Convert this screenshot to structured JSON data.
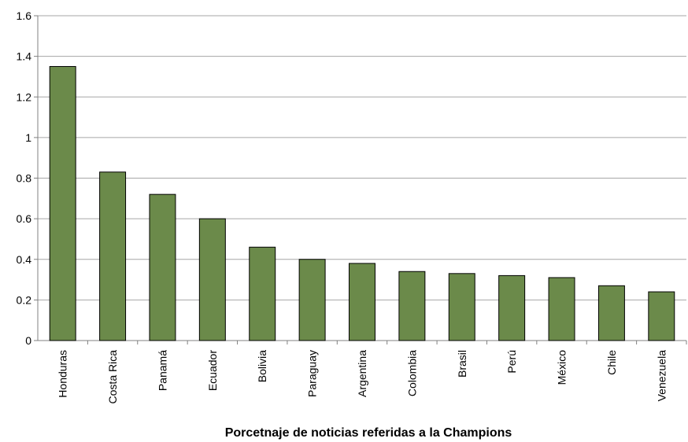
{
  "chart_data": {
    "type": "bar",
    "x_label": "Porcetnaje de noticias referidas a la Champions",
    "categories": [
      "Honduras",
      "Costa Rica",
      "Panamá",
      "Ecuador",
      "Bolivia",
      "Paraguay",
      "Argentina",
      "Colombia",
      "Brasil",
      "Perú",
      "México",
      "Chile",
      "Venezuela"
    ],
    "values": [
      1.35,
      0.83,
      0.72,
      0.6,
      0.46,
      0.4,
      0.38,
      0.34,
      0.33,
      0.32,
      0.31,
      0.27,
      0.24
    ],
    "color": "#6b8a4a",
    "ylim": [
      0,
      1.6
    ],
    "yticks": [
      0,
      0.2,
      0.4,
      0.6,
      0.8,
      1,
      1.2,
      1.4,
      1.6
    ],
    "grid": true
  }
}
